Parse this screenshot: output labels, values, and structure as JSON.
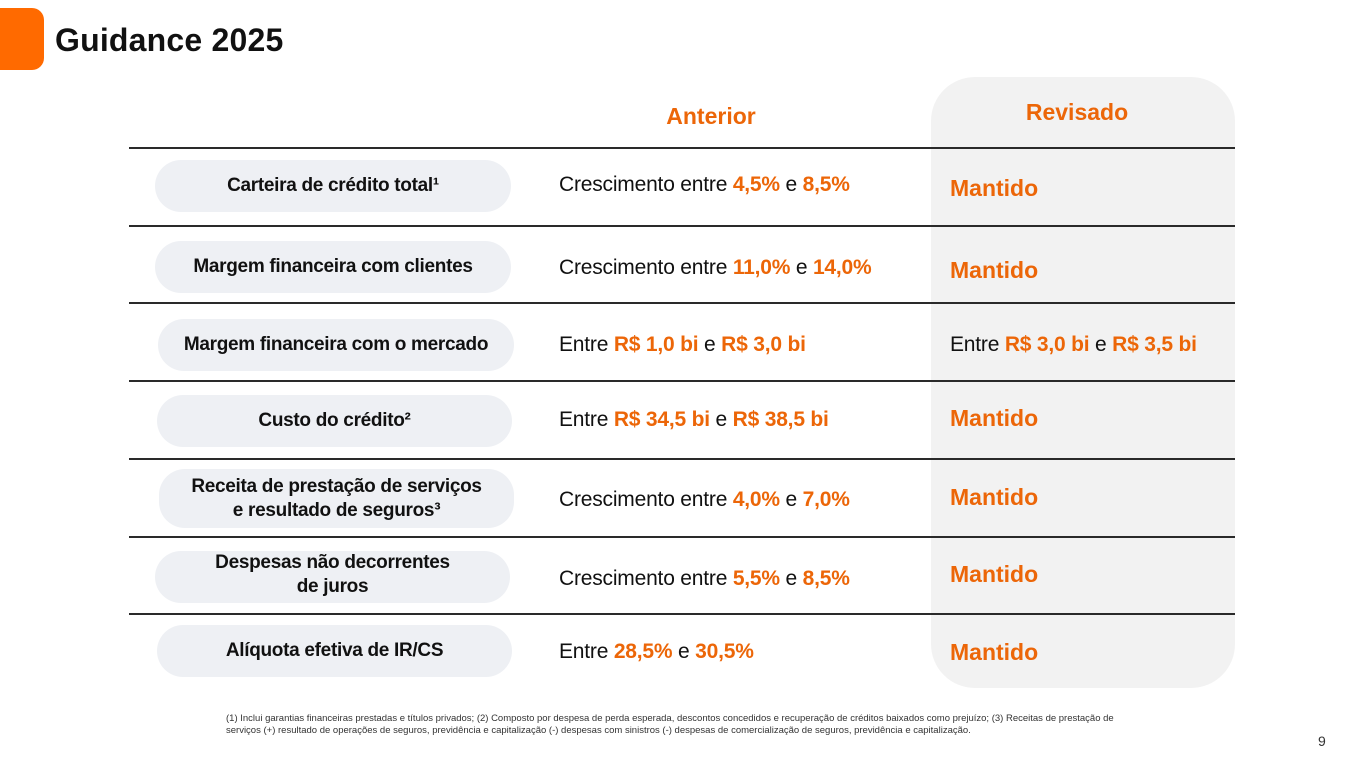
{
  "title": "Guidance 2025",
  "headers": {
    "anterior": "Anterior",
    "revisado": "Revisado"
  },
  "rows": [
    {
      "label": "Carteira de crédito total¹",
      "anterior": {
        "pre": "Crescimento entre ",
        "v1": "4,5%",
        "mid": " e ",
        "v2": "8,5%"
      },
      "revisado": "Mantido"
    },
    {
      "label": "Margem financeira com clientes",
      "anterior": {
        "pre": "Crescimento entre ",
        "v1": "11,0%",
        "mid": " e ",
        "v2": "14,0%"
      },
      "revisado": "Mantido"
    },
    {
      "label": "Margem financeira com o mercado",
      "anterior": {
        "pre": "Entre ",
        "v1": "R$ 1,0 bi",
        "mid": " e ",
        "v2": "R$ 3,0 bi"
      },
      "revisado": {
        "pre": "Entre ",
        "v1": "R$ 3,0 bi",
        "mid": " e ",
        "v2": "R$ 3,5 bi"
      }
    },
    {
      "label": "Custo do crédito²",
      "anterior": {
        "pre": "Entre ",
        "v1": "R$ 34,5 bi",
        "mid": " e ",
        "v2": "R$ 38,5 bi"
      },
      "revisado": "Mantido"
    },
    {
      "label": "Receita de prestação de serviços\ne resultado de seguros³",
      "anterior": {
        "pre": "Crescimento entre ",
        "v1": "4,0%",
        "mid": " e ",
        "v2": "7,0%"
      },
      "revisado": "Mantido"
    },
    {
      "label": "Despesas não decorrentes\nde juros",
      "anterior": {
        "pre": "Crescimento entre ",
        "v1": "5,5%",
        "mid": " e ",
        "v2": "8,5%"
      },
      "revisado": "Mantido"
    },
    {
      "label": "Alíquota efetiva de IR/CS",
      "anterior": {
        "pre": "Entre ",
        "v1": "28,5%",
        "mid": " e ",
        "v2": "30,5%"
      },
      "revisado": "Mantido"
    }
  ],
  "footnote": "(1) Inclui garantias financeiras prestadas e títulos privados; (2) Composto por despesa de perda esperada, descontos concedidos e recuperação de créditos baixados como prejuízo; (3) Receitas de prestação de serviços (+) resultado de operações de seguros, previdência e capitalização (-) despesas com sinistros (-) despesas de comercialização de seguros, previdência e capitalização.",
  "page_number": "9",
  "colors": {
    "accent": "#ff6a00",
    "highlight": "#ec6608",
    "pill": "#eef0f4",
    "panel": "#f2f2f2"
  }
}
